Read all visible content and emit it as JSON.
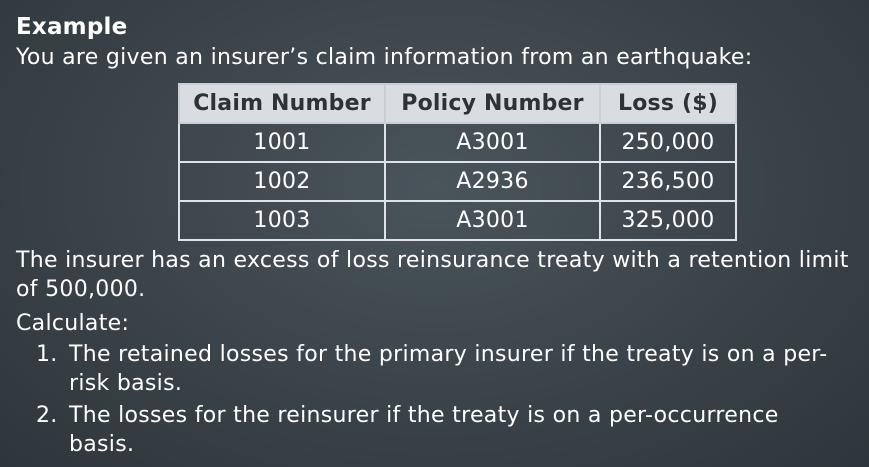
{
  "slide": {
    "heading": "Example",
    "intro": "You are given an insurer’s claim information from an earthquake:",
    "table": {
      "headers": [
        "Claim Number",
        "Policy Number",
        "Loss ($)"
      ],
      "rows": [
        [
          "1001",
          "A3001",
          "250,000"
        ],
        [
          "1002",
          "A2936",
          "236,500"
        ],
        [
          "1003",
          "A3001",
          "325,000"
        ]
      ]
    },
    "treaty_text": "The insurer has an excess of loss reinsurance treaty with a retention limit of 500,000.",
    "calculate_label": "Calculate:",
    "steps": [
      {
        "number": "1.",
        "text": "The retained losses for the primary insurer if the treaty is on a per-risk basis."
      },
      {
        "number": "2.",
        "text": "The losses for the reinsurer if the treaty is on a per-occurrence basis."
      }
    ]
  }
}
